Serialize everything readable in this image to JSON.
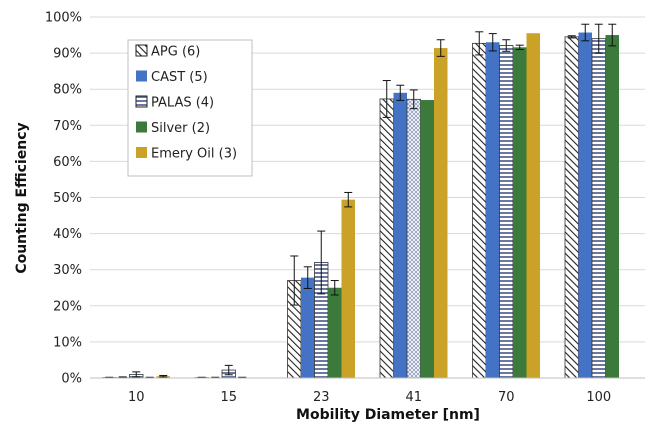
{
  "chart_data": {
    "type": "bar",
    "title": "",
    "xlabel": "Mobility Diameter [nm]",
    "ylabel": "Counting Efficiency",
    "categories": [
      "10",
      "15",
      "23",
      "41",
      "70",
      "100"
    ],
    "ylim": [
      0,
      1
    ],
    "yticks": [
      0,
      0.1,
      0.2,
      0.3,
      0.4,
      0.5,
      0.6,
      0.7,
      0.8,
      0.9,
      1.0
    ],
    "ytick_labels": [
      "0%",
      "10%",
      "20%",
      "30%",
      "40%",
      "50%",
      "60%",
      "70%",
      "80%",
      "90%",
      "100%"
    ],
    "grid": "horizontal",
    "legend_position": "top-left",
    "series": [
      {
        "name": "APG (6)",
        "color": "#444444",
        "pattern": "diagonal-stripes",
        "values": [
          0.001,
          0.001,
          0.27,
          0.773,
          0.927,
          0.945
        ],
        "errors": [
          0.001,
          0.001,
          0.068,
          0.051,
          0.032,
          0.003
        ]
      },
      {
        "name": "CAST (5)",
        "color": "#4472c4",
        "pattern": "solid",
        "values": [
          0.002,
          0.001,
          0.278,
          0.79,
          0.93,
          0.957
        ],
        "errors": [
          0.001,
          0.001,
          0.03,
          0.021,
          0.024,
          0.023
        ]
      },
      {
        "name": "PALAS (4)",
        "color": "#5a6a96",
        "pattern": "horizontal-stripes",
        "values": [
          0.01,
          0.022,
          0.32,
          0.772,
          0.921,
          0.94
        ],
        "errors": [
          0.007,
          0.013,
          0.087,
          0.026,
          0.016,
          0.04
        ]
      },
      {
        "name": "Silver (2)",
        "color": "#3b7a3a",
        "pattern": "solid",
        "values": [
          0.001,
          0.001,
          0.25,
          0.77,
          0.916,
          0.95
        ],
        "errors": [
          0.001,
          0.001,
          0.02,
          0.0,
          0.006,
          0.03
        ]
      },
      {
        "name": "Emery Oil (3)",
        "color": "#c9a227",
        "pattern": "solid",
        "values": [
          0.005,
          0.0,
          0.494,
          0.914,
          0.955,
          null
        ],
        "errors": [
          0.002,
          0.0,
          0.02,
          0.023,
          0.0,
          null
        ]
      }
    ]
  }
}
